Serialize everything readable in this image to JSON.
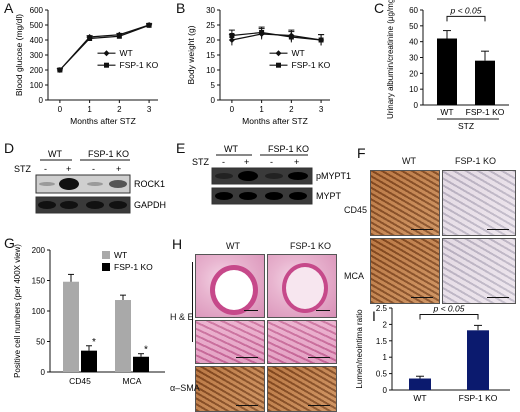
{
  "panels": {
    "A": {
      "label": "A",
      "chart_data": {
        "type": "line",
        "xlabel": "Months after STZ",
        "ylabel": "Blood glucose (mg/dl)",
        "x": [
          0,
          1,
          2,
          3
        ],
        "xticks": [
          "0",
          "1",
          "2",
          "3"
        ],
        "yticks": [
          "0",
          "100",
          "200",
          "300",
          "400",
          "500",
          "600"
        ],
        "ylim": [
          0,
          600
        ],
        "series": [
          {
            "name": "WT",
            "values": [
              200,
              420,
              435,
              500
            ]
          },
          {
            "name": "FSP-1 KO",
            "values": [
              200,
              410,
              425,
              498
            ]
          }
        ],
        "legend": "inside-right"
      }
    },
    "B": {
      "label": "B",
      "chart_data": {
        "type": "line",
        "xlabel": "Months after STZ",
        "ylabel": "Body weight (g)",
        "x": [
          0,
          1,
          2,
          3
        ],
        "xticks": [
          "0",
          "1",
          "2",
          "3"
        ],
        "yticks": [
          "0",
          "5",
          "10",
          "15",
          "20",
          "25",
          "30"
        ],
        "ylim": [
          0,
          30
        ],
        "series": [
          {
            "name": "WT",
            "values": [
              20,
              22,
              21.5,
              20
            ]
          },
          {
            "name": "FSP-1 KO",
            "values": [
              21.5,
              22.5,
              21,
              20
            ]
          }
        ],
        "legend": "inside-right"
      }
    },
    "C": {
      "label": "C",
      "chart_data": {
        "type": "bar",
        "ylabel": "Urinary albumin/creatinine (µg/mg)",
        "categories": [
          "WT",
          "FSP-1 KO"
        ],
        "values": [
          42,
          28
        ],
        "errors": [
          5,
          6
        ],
        "yticks": [
          "0",
          "10",
          "20",
          "30",
          "40",
          "50",
          "60"
        ],
        "ylim": [
          0,
          60
        ],
        "group_label": "STZ",
        "annotation": "p < 0.05"
      }
    },
    "D": {
      "label": "D",
      "groups": [
        "WT",
        "FSP-1 KO"
      ],
      "treatment": "STZ",
      "signs": [
        "-",
        "+",
        "-",
        "+"
      ],
      "bands": [
        "ROCK1",
        "GAPDH"
      ]
    },
    "E": {
      "label": "E",
      "groups": [
        "WT",
        "FSP-1 KO"
      ],
      "treatment": "STZ",
      "signs": [
        "-",
        "+",
        "-",
        "+"
      ],
      "bands": [
        "pMYPT1",
        "MYPT"
      ]
    },
    "F": {
      "label": "F",
      "columns": [
        "WT",
        "FSP-1 KO"
      ],
      "rows": [
        "CD45",
        "MCA"
      ]
    },
    "G": {
      "label": "G",
      "chart_data": {
        "type": "bar",
        "ylabel": "Positive cell numbers (per 400X view)",
        "categories": [
          "CD45",
          "MCA"
        ],
        "series": [
          {
            "name": "WT",
            "values": [
              148,
              118
            ],
            "errors": [
              12,
              8
            ],
            "color": "#a9a9a9"
          },
          {
            "name": "FSP-1 KO",
            "values": [
              35,
              25
            ],
            "errors": [
              8,
              5
            ],
            "color": "#000000"
          }
        ],
        "yticks": [
          "0",
          "50",
          "100",
          "150",
          "200"
        ],
        "ylim": [
          0,
          200
        ],
        "annotations": [
          "*",
          "*"
        ],
        "legend": "top-right"
      }
    },
    "H": {
      "label": "H",
      "columns": [
        "WT",
        "FSP-1 KO"
      ],
      "rows": [
        "H & E",
        "α–SMA"
      ]
    },
    "I": {
      "label": "I",
      "chart_data": {
        "type": "bar",
        "ylabel": "Lumen/neointima ratio",
        "categories": [
          "WT",
          "FSP-1 KO"
        ],
        "values": [
          0.35,
          1.82
        ],
        "errors": [
          0.07,
          0.15
        ],
        "colors": [
          "#0b1a6e",
          "#0b1a6e"
        ],
        "yticks": [
          "0",
          "0.5",
          "1",
          "1.5",
          "2",
          "2.5"
        ],
        "ylim": [
          0,
          2.5
        ],
        "annotation": "p < 0.05"
      }
    }
  }
}
